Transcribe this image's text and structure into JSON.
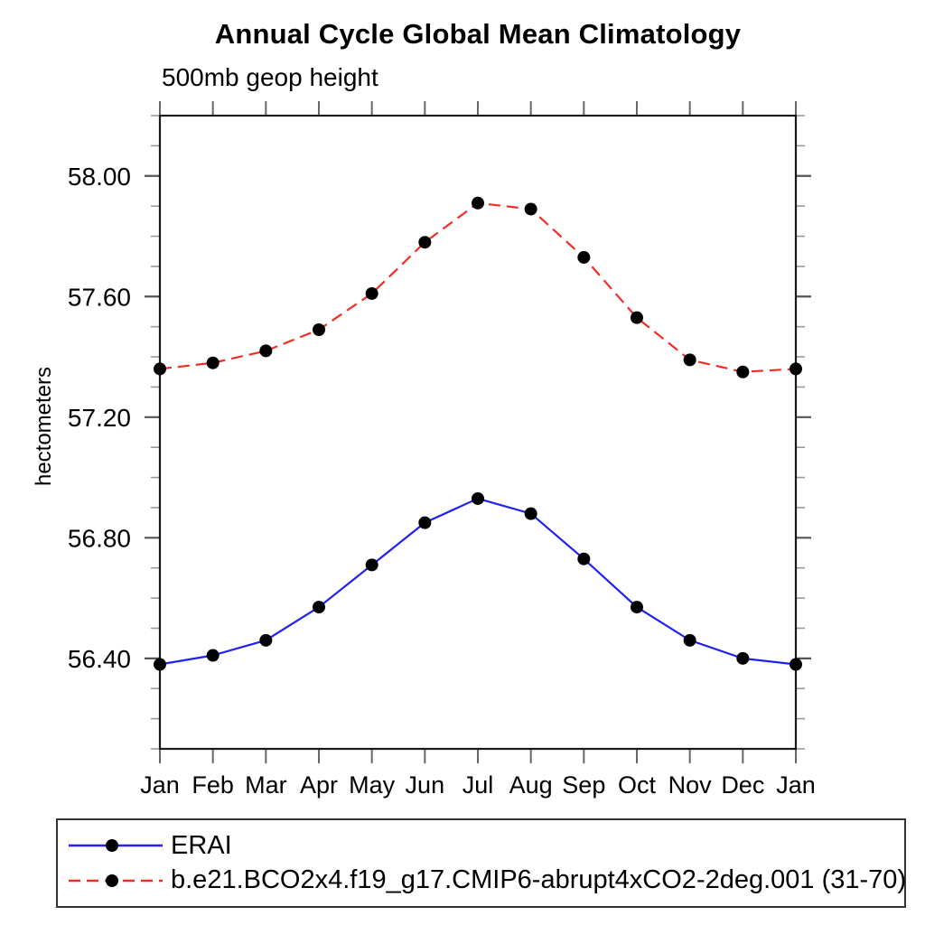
{
  "chart_data": {
    "type": "line",
    "title": "Annual Cycle Global Mean Climatology",
    "subtitle": "500mb geop height",
    "ylabel": "hectometers",
    "xlabel": "",
    "x_categories": [
      "Jan",
      "Feb",
      "Mar",
      "Apr",
      "May",
      "Jun",
      "Jul",
      "Aug",
      "Sep",
      "Oct",
      "Nov",
      "Dec",
      "Jan"
    ],
    "ylim": [
      56.1,
      58.2
    ],
    "yticks_major": [
      56.4,
      56.8,
      57.2,
      57.6,
      58.0
    ],
    "ytick_labels": [
      "56.40",
      "56.80",
      "57.20",
      "57.60",
      "58.00"
    ],
    "ytick_minor_step": 0.1,
    "grid": "off",
    "legend_position": "bottom-left-box",
    "marker_color": "#000000",
    "series": [
      {
        "name": "ERAI",
        "color": "#2222ee",
        "line_style": "solid",
        "marker": "filled-circle",
        "values": [
          56.38,
          56.41,
          56.46,
          56.57,
          56.71,
          56.85,
          56.93,
          56.88,
          56.73,
          56.57,
          56.46,
          56.4,
          56.38
        ]
      },
      {
        "name": "b.e21.BCO2x4.f19_g17.CMIP6-abrupt4xCO2-2deg.001 (31-70)",
        "color": "#f22d26",
        "line_style": "dashed",
        "marker": "filled-circle",
        "values": [
          57.36,
          57.38,
          57.42,
          57.49,
          57.61,
          57.78,
          57.91,
          57.89,
          57.73,
          57.53,
          57.39,
          57.35,
          57.36
        ]
      }
    ]
  }
}
